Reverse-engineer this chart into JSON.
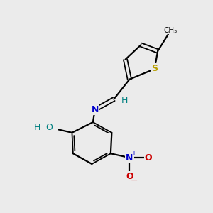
{
  "background_color": "#ebebeb",
  "atom_colors": {
    "S": "#b8a000",
    "N": "#0000cc",
    "O": "#cc0000",
    "O_teal": "#008080",
    "C": "#000000",
    "H": "#008080"
  },
  "figsize": [
    3.0,
    3.0
  ],
  "dpi": 100,
  "xlim": [
    0,
    10
  ],
  "ylim": [
    0,
    10
  ]
}
